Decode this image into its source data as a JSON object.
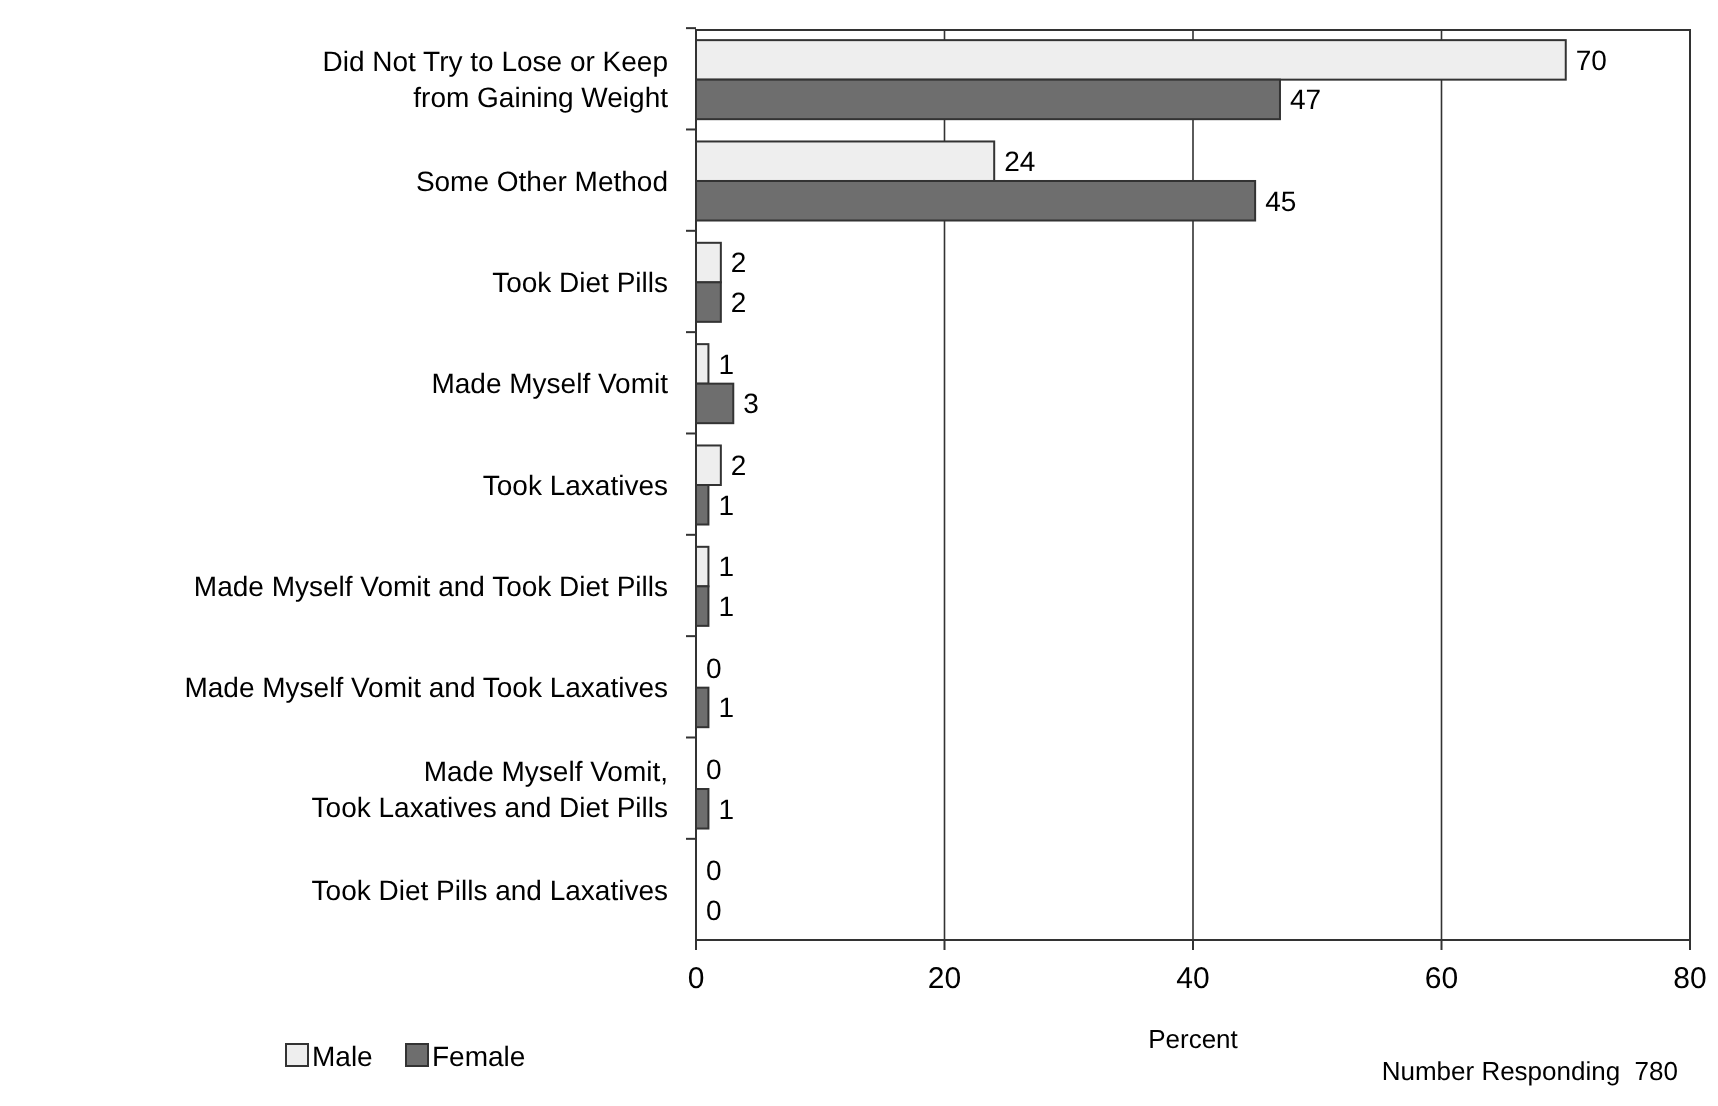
{
  "chart_data": {
    "type": "bar",
    "orientation": "horizontal",
    "xlabel": "Percent",
    "categories": [
      "Did Not Try to Lose or Keep\nfrom Gaining Weight",
      "Some Other Method",
      "Took Diet Pills",
      "Made Myself Vomit",
      "Took Laxatives",
      "Made Myself Vomit and Took Diet Pills",
      "Made Myself Vomit and Took Laxatives",
      "Made Myself Vomit,\nTook Laxatives and Diet Pills",
      "Took Diet Pills and Laxatives"
    ],
    "series": [
      {
        "name": "Male",
        "color": "#eeeeee",
        "values": [
          70,
          24,
          2,
          1,
          2,
          1,
          0,
          0,
          0
        ]
      },
      {
        "name": "Female",
        "color": "#6e6e6e",
        "values": [
          47,
          45,
          2,
          3,
          1,
          1,
          1,
          1,
          0
        ]
      }
    ],
    "xlim": [
      0,
      80
    ],
    "xticks": [
      0,
      20,
      40,
      60,
      80
    ],
    "grid": "x",
    "legend": "bottom left",
    "data_labels": true,
    "annotations": [
      "Number Responding  780"
    ]
  }
}
